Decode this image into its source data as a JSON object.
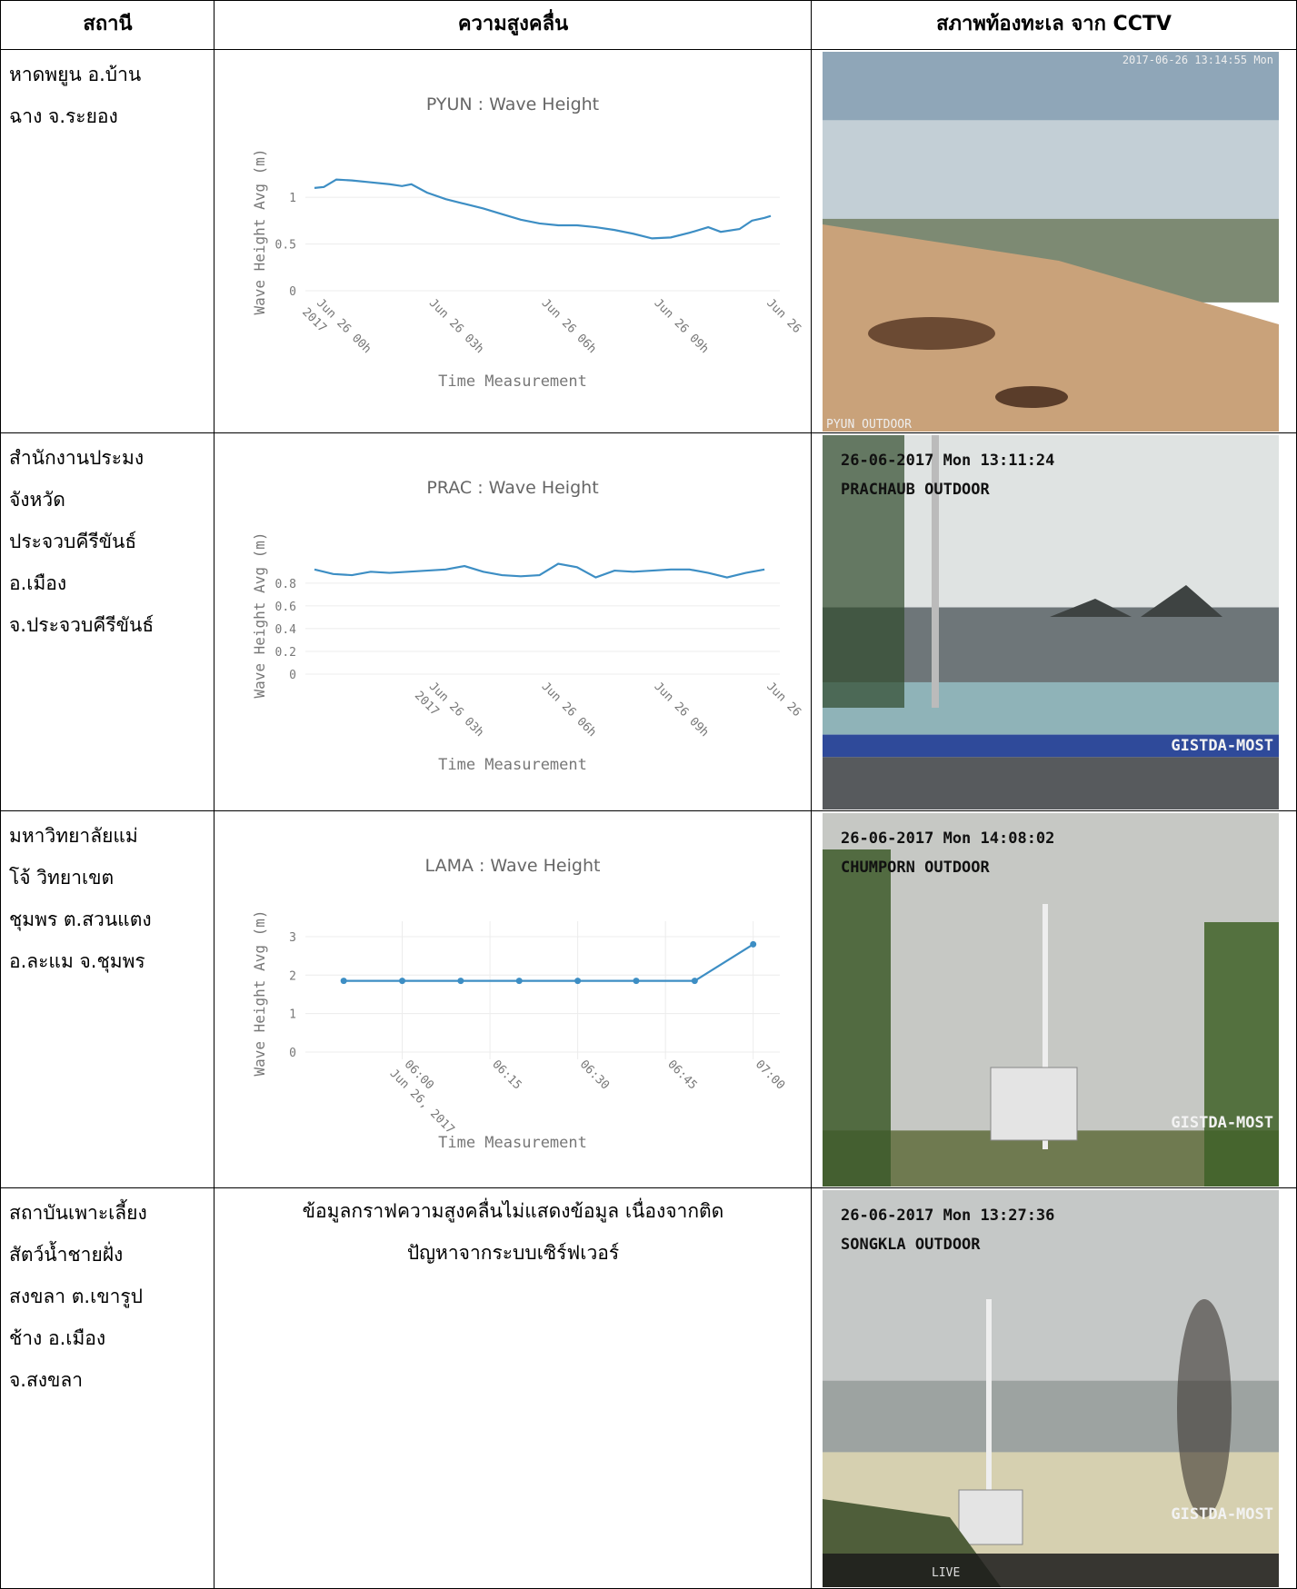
{
  "table": {
    "header": [
      "สถานี",
      "ความสูงคลื่น",
      "สภาพท้องทะเล จาก CCTV"
    ],
    "rows": [
      {
        "station": [
          "หาดพยูน อ.บ้าน",
          "ฉาง จ.ระยอง"
        ],
        "chart": {
          "type": "line",
          "title": "PYUN : Wave Height",
          "x_label": "Time Measurement",
          "y_label": "Wave Height Avg (m)",
          "color": "#3d8ec4",
          "markers": false,
          "xgrid": false,
          "x": [
            "00:00",
            "00:15",
            "00:35",
            "01:00",
            "01:30",
            "02:00",
            "02:20",
            "02:35",
            "03:00",
            "03:30",
            "04:00",
            "04:30",
            "05:00",
            "05:30",
            "06:00",
            "06:30",
            "07:00",
            "07:30",
            "08:00",
            "08:30",
            "09:00",
            "09:30",
            "10:00",
            "10:30",
            "10:50",
            "11:20",
            "11:40",
            "12:00",
            "12:10"
          ],
          "values": [
            1.1,
            1.11,
            1.19,
            1.18,
            1.16,
            1.14,
            1.12,
            1.14,
            1.05,
            0.98,
            0.93,
            0.88,
            0.82,
            0.76,
            0.72,
            0.7,
            0.7,
            0.68,
            0.65,
            0.61,
            0.56,
            0.57,
            0.62,
            0.68,
            0.63,
            0.66,
            0.75,
            0.78,
            0.8
          ],
          "xlim": [
            "00:00",
            "12:10"
          ],
          "ylim": [
            0,
            1.4
          ],
          "yticks": [
            0,
            0.5,
            1
          ],
          "xticks": [
            {
              "value": "00:00",
              "label": "Jun 26 00h"
            },
            {
              "value": "03:00",
              "label": "Jun 26 03h"
            },
            {
              "value": "06:00",
              "label": "Jun 26 06h"
            },
            {
              "value": "09:00",
              "label": "Jun 26 09h"
            },
            {
              "value": "12:00",
              "label": "Jun 26"
            }
          ],
          "x_year": "2017"
        },
        "cctv": {
          "scene": "beach",
          "stamp": "2017-06-26 13:14:55 Mon",
          "name": "PYUN OUTDOOR"
        }
      },
      {
        "station": [
          "สำนักงานประมง",
          "จังหวัด",
          "ประจวบคีรีขันธ์",
          "อ.เมือง",
          "จ.ประจวบคีรีขันธ์"
        ],
        "chart": {
          "type": "line",
          "title": "PRAC : Wave Height",
          "x_label": "Time Measurement",
          "y_label": "Wave Height Avg (m)",
          "color": "#3d8ec4",
          "markers": false,
          "xgrid": false,
          "x": [
            "00:00",
            "00:30",
            "01:00",
            "01:30",
            "02:00",
            "02:30",
            "03:00",
            "03:30",
            "04:00",
            "04:30",
            "05:00",
            "05:30",
            "06:00",
            "06:30",
            "07:00",
            "07:30",
            "08:00",
            "08:30",
            "09:00",
            "09:30",
            "10:00",
            "10:30",
            "11:00",
            "11:30",
            "12:00"
          ],
          "values": [
            0.92,
            0.88,
            0.87,
            0.9,
            0.89,
            0.9,
            0.91,
            0.92,
            0.95,
            0.9,
            0.87,
            0.86,
            0.87,
            0.97,
            0.94,
            0.85,
            0.91,
            0.9,
            0.91,
            0.92,
            0.92,
            0.89,
            0.85,
            0.89,
            0.92
          ],
          "xlim": [
            "00:00",
            "12:10"
          ],
          "ylim": [
            0,
            1.15
          ],
          "yticks": [
            0,
            0.2,
            0.4,
            0.6,
            0.8
          ],
          "xticks": [
            {
              "value": "03:00",
              "label": "Jun 26 03h"
            },
            {
              "value": "06:00",
              "label": "Jun 26 06h"
            },
            {
              "value": "09:00",
              "label": "Jun 26 09h"
            },
            {
              "value": "12:00",
              "label": "Jun 26"
            }
          ],
          "x_year": "2017"
        },
        "cctv": {
          "scene": "bay",
          "stamp": "26-06-2017 Mon 13:11:24",
          "name": "PRACHAUB OUTDOOR",
          "mark": "GISTDA-MOST"
        }
      },
      {
        "station": [
          "มหาวิทยาลัยแม่",
          "โจ้ วิทยาเขต",
          "ชุมพร ต.สวนแตง",
          "อ.ละแม จ.ชุมพร"
        ],
        "chart": {
          "type": "line",
          "title": "LAMA : Wave Height",
          "x_label": "Time Measurement",
          "y_label": "Wave Height Avg (m)",
          "color": "#3d8ec4",
          "markers": true,
          "xgrid": true,
          "x": [
            "05:50",
            "06:00",
            "06:10",
            "06:20",
            "06:30",
            "06:40",
            "06:50",
            "07:00"
          ],
          "values": [
            1.85,
            1.85,
            1.85,
            1.85,
            1.85,
            1.85,
            1.85,
            2.8
          ],
          "xlim": [
            "05:45",
            "07:03"
          ],
          "ylim": [
            0,
            3.4
          ],
          "yticks": [
            0,
            1,
            2,
            3
          ],
          "xticks": [
            "06:00",
            "06:15",
            "06:30",
            "06:45",
            "07:00"
          ],
          "x_year": "Jun 26, 2017"
        },
        "cctv": {
          "scene": "mast",
          "stamp": "26-06-2017 Mon 14:08:02",
          "name": "CHUMPORN OUTDOOR",
          "mark": "GISTDA-MOST"
        }
      },
      {
        "station": [
          "สถาบันเพาะเลี้ยง",
          "สัตว์น้ำชายฝั่ง",
          "สงขลา ต.เขารูป",
          "ช้าง อ.เมือง",
          "จ.สงขลา"
        ],
        "note": [
          "ข้อมูลกราฟความสูงคลื่นไม่แสดงข้อมูล เนื่องจากติด",
          "ปัญหาจากระบบเซิร์ฟเวอร์"
        ],
        "cctv": {
          "scene": "mast2",
          "stamp": "26-06-2017 Mon 13:27:36",
          "name": "SONGKLA OUTDOOR",
          "mark": "GISTDA-MOST",
          "live": "LIVE"
        }
      }
    ]
  }
}
